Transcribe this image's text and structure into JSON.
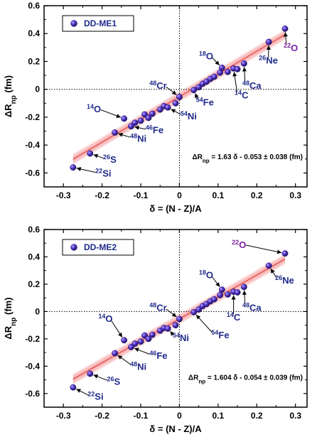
{
  "chart_data": [
    {
      "type": "scatter",
      "legend": "DD-ME1",
      "legend_position": "top-left",
      "xlabel": "δ = (N - Z)/A",
      "ylabel": "ΔR",
      "ylabel_sub": "np",
      "ylabel_unit": " (fm)",
      "xlim": [
        -0.35,
        0.33
      ],
      "ylim": [
        -0.7,
        0.6
      ],
      "xticks": [
        -0.3,
        -0.2,
        -0.1,
        0.0,
        0.1,
        0.2,
        0.3
      ],
      "yticks": [
        -0.6,
        -0.4,
        -0.2,
        0.0,
        0.2,
        0.4,
        0.6
      ],
      "fit": {
        "slope": 1.63,
        "intercept": -0.053,
        "band": 0.038
      },
      "fit_text_lead": "ΔR",
      "fit_text_sub": "np",
      "fit_text_rest": " = 1.63 δ - 0.053 ± 0.038 (fm)",
      "points": [
        {
          "x": -0.275,
          "y": -0.56
        },
        {
          "x": -0.231,
          "y": -0.46
        },
        {
          "x": -0.167,
          "y": -0.31
        },
        {
          "x": -0.143,
          "y": -0.21
        },
        {
          "x": -0.125,
          "y": -0.265
        },
        {
          "x": -0.115,
          "y": -0.24
        },
        {
          "x": -0.1,
          "y": -0.225
        },
        {
          "x": -0.09,
          "y": -0.18
        },
        {
          "x": -0.08,
          "y": -0.205
        },
        {
          "x": -0.07,
          "y": -0.175
        },
        {
          "x": -0.05,
          "y": -0.145
        },
        {
          "x": -0.04,
          "y": -0.12
        },
        {
          "x": -0.03,
          "y": -0.13
        },
        {
          "x": -0.01,
          "y": -0.1
        },
        {
          "x": 0.0,
          "y": -0.055
        },
        {
          "x": 0.037,
          "y": -0.005
        },
        {
          "x": 0.05,
          "y": 0.015
        },
        {
          "x": 0.06,
          "y": 0.04
        },
        {
          "x": 0.07,
          "y": 0.055
        },
        {
          "x": 0.08,
          "y": 0.075
        },
        {
          "x": 0.09,
          "y": 0.09
        },
        {
          "x": 0.105,
          "y": 0.12
        },
        {
          "x": 0.11,
          "y": 0.155
        },
        {
          "x": 0.125,
          "y": 0.125
        },
        {
          "x": 0.14,
          "y": 0.15
        },
        {
          "x": 0.15,
          "y": 0.145
        },
        {
          "x": 0.167,
          "y": 0.185
        },
        {
          "x": 0.231,
          "y": 0.34
        },
        {
          "x": 0.273,
          "y": 0.435
        }
      ],
      "annotations": [
        {
          "mass": "22",
          "sym": "Si",
          "x": -0.275,
          "y": -0.56,
          "lx": -0.21,
          "ly": -0.6,
          "color": "blue"
        },
        {
          "mass": "26",
          "sym": "S",
          "x": -0.231,
          "y": -0.46,
          "lx": -0.19,
          "ly": -0.5,
          "color": "blue"
        },
        {
          "mass": "48",
          "sym": "Ni",
          "x": -0.167,
          "y": -0.31,
          "lx": -0.12,
          "ly": -0.35,
          "color": "blue"
        },
        {
          "mass": "46",
          "sym": "Fe",
          "x": -0.125,
          "y": -0.265,
          "lx": -0.08,
          "ly": -0.29,
          "color": "blue"
        },
        {
          "mass": "14",
          "sym": "O",
          "x": -0.143,
          "y": -0.21,
          "lx": -0.21,
          "ly": -0.14,
          "color": "blue"
        },
        {
          "mass": "48",
          "sym": "Cr",
          "x": 0.0,
          "y": -0.055,
          "lx": -0.04,
          "ly": 0.03,
          "color": "blue"
        },
        {
          "mass": "54",
          "sym": "Ni",
          "x": -0.03,
          "y": -0.13,
          "lx": 0.01,
          "ly": -0.19,
          "color": "blue"
        },
        {
          "mass": "54",
          "sym": "Fe",
          "x": 0.037,
          "y": -0.005,
          "lx": 0.05,
          "ly": -0.09,
          "color": "blue"
        },
        {
          "mass": "18",
          "sym": "O",
          "x": 0.11,
          "y": 0.155,
          "lx": 0.08,
          "ly": 0.24,
          "color": "blue"
        },
        {
          "mass": "14",
          "sym": "C",
          "x": 0.14,
          "y": 0.15,
          "lx": 0.15,
          "ly": -0.04,
          "color": "blue"
        },
        {
          "mass": "48",
          "sym": "Ca",
          "x": 0.167,
          "y": 0.185,
          "lx": 0.17,
          "ly": 0.03,
          "color": "blue"
        },
        {
          "mass": "26",
          "sym": "Ne",
          "x": 0.231,
          "y": 0.34,
          "lx": 0.23,
          "ly": 0.21,
          "color": "blue"
        },
        {
          "mass": "22",
          "sym": "O",
          "x": 0.273,
          "y": 0.435,
          "lx": 0.277,
          "ly": 0.3,
          "color": "purple"
        }
      ]
    },
    {
      "type": "scatter",
      "legend": "DD-ME2",
      "legend_position": "top-left",
      "xlabel": "δ = (N - Z)/A",
      "ylabel": "ΔR",
      "ylabel_sub": "np",
      "ylabel_unit": " (fm)",
      "xlim": [
        -0.35,
        0.33
      ],
      "ylim": [
        -0.7,
        0.6
      ],
      "xticks": [
        -0.3,
        -0.2,
        -0.1,
        0.0,
        0.1,
        0.2,
        0.3
      ],
      "yticks": [
        -0.6,
        -0.4,
        -0.2,
        0.0,
        0.2,
        0.4,
        0.6
      ],
      "fit": {
        "slope": 1.604,
        "intercept": -0.054,
        "band": 0.039
      },
      "fit_text_lead": "ΔR",
      "fit_text_sub": "np",
      "fit_text_rest": " = 1.604 δ - 0.054 ± 0.039 (fm)",
      "points": [
        {
          "x": -0.275,
          "y": -0.555
        },
        {
          "x": -0.231,
          "y": -0.455
        },
        {
          "x": -0.167,
          "y": -0.305
        },
        {
          "x": -0.143,
          "y": -0.21
        },
        {
          "x": -0.125,
          "y": -0.26
        },
        {
          "x": -0.115,
          "y": -0.235
        },
        {
          "x": -0.1,
          "y": -0.22
        },
        {
          "x": -0.09,
          "y": -0.175
        },
        {
          "x": -0.08,
          "y": -0.2
        },
        {
          "x": -0.07,
          "y": -0.17
        },
        {
          "x": -0.05,
          "y": -0.14
        },
        {
          "x": -0.04,
          "y": -0.12
        },
        {
          "x": -0.03,
          "y": -0.125
        },
        {
          "x": -0.01,
          "y": -0.1
        },
        {
          "x": 0.0,
          "y": -0.055
        },
        {
          "x": 0.037,
          "y": -0.005
        },
        {
          "x": 0.05,
          "y": 0.015
        },
        {
          "x": 0.06,
          "y": 0.04
        },
        {
          "x": 0.07,
          "y": 0.055
        },
        {
          "x": 0.08,
          "y": 0.075
        },
        {
          "x": 0.09,
          "y": 0.09
        },
        {
          "x": 0.105,
          "y": 0.12
        },
        {
          "x": 0.11,
          "y": 0.16
        },
        {
          "x": 0.125,
          "y": 0.125
        },
        {
          "x": 0.14,
          "y": 0.145
        },
        {
          "x": 0.15,
          "y": 0.14
        },
        {
          "x": 0.167,
          "y": 0.18
        },
        {
          "x": 0.231,
          "y": 0.335
        },
        {
          "x": 0.273,
          "y": 0.425
        }
      ],
      "annotations": [
        {
          "mass": "22",
          "sym": "Si",
          "x": -0.275,
          "y": -0.555,
          "lx": -0.23,
          "ly": -0.62,
          "color": "blue"
        },
        {
          "mass": "26",
          "sym": "S",
          "x": -0.231,
          "y": -0.455,
          "lx": -0.18,
          "ly": -0.51,
          "color": "blue"
        },
        {
          "mass": "48",
          "sym": "Ni",
          "x": -0.167,
          "y": -0.305,
          "lx": -0.12,
          "ly": -0.4,
          "color": "blue"
        },
        {
          "mass": "46",
          "sym": "Fe",
          "x": -0.125,
          "y": -0.26,
          "lx": -0.07,
          "ly": -0.32,
          "color": "blue"
        },
        {
          "mass": "14",
          "sym": "O",
          "x": -0.143,
          "y": -0.21,
          "lx": -0.18,
          "ly": -0.05,
          "color": "blue"
        },
        {
          "mass": "48",
          "sym": "Cr",
          "x": 0.0,
          "y": -0.055,
          "lx": -0.04,
          "ly": 0.03,
          "color": "blue"
        },
        {
          "mass": "54",
          "sym": "Ni",
          "x": -0.03,
          "y": -0.125,
          "lx": -0.01,
          "ly": -0.19,
          "color": "blue"
        },
        {
          "mass": "54",
          "sym": "Fe",
          "x": 0.037,
          "y": -0.005,
          "lx": 0.09,
          "ly": -0.17,
          "color": "blue"
        },
        {
          "mass": "18",
          "sym": "O",
          "x": 0.11,
          "y": 0.16,
          "lx": 0.08,
          "ly": 0.27,
          "color": "blue"
        },
        {
          "mass": "14",
          "sym": "C",
          "x": 0.14,
          "y": 0.145,
          "lx": 0.14,
          "ly": -0.04,
          "color": "blue"
        },
        {
          "mass": "48",
          "sym": "Ca",
          "x": 0.167,
          "y": 0.18,
          "lx": 0.17,
          "ly": 0.03,
          "color": "blue"
        },
        {
          "mass": "26",
          "sym": "Ne",
          "x": 0.231,
          "y": 0.335,
          "lx": 0.255,
          "ly": 0.23,
          "color": "blue"
        },
        {
          "mass": "22",
          "sym": "O",
          "x": 0.273,
          "y": 0.425,
          "lx": 0.165,
          "ly": 0.49,
          "color": "purple"
        }
      ]
    }
  ]
}
